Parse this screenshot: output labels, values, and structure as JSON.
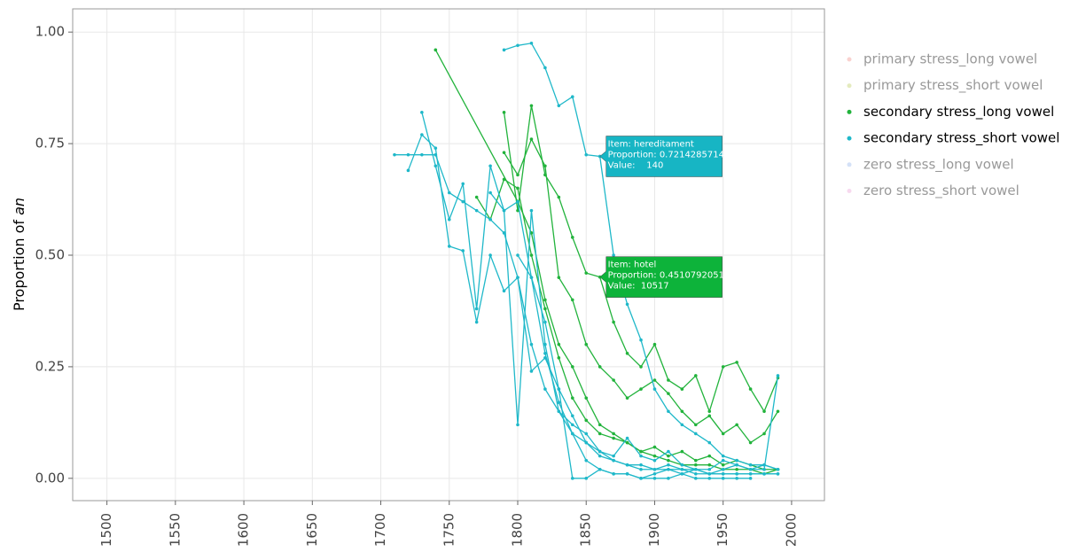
{
  "chart_data": {
    "type": "line",
    "y_label": "Proportion of",
    "y_label_emphasis": "an",
    "xlim": [
      1475,
      2024
    ],
    "xticks": [
      1500,
      1550,
      1600,
      1650,
      1700,
      1750,
      1800,
      1850,
      1900,
      1950,
      2000
    ],
    "ylim": [
      -0.05,
      1.052
    ],
    "yticks": [
      {
        "value": 0,
        "label": "0.00"
      },
      {
        "value": 0.25,
        "label": "0.25"
      },
      {
        "value": 0.5,
        "label": "0.50"
      },
      {
        "value": 0.75,
        "label": "0.75"
      },
      {
        "value": 1,
        "label": "1.00"
      }
    ],
    "grid": true,
    "legend_position": "right",
    "groups": [
      {
        "name": "primary stress_long vowel",
        "color": "#f3a6a0",
        "visible": false,
        "series": []
      },
      {
        "name": "primary stress_short vowel",
        "color": "#c9d77d",
        "visible": false,
        "series": []
      },
      {
        "name": "secondary stress_long vowel",
        "color": "#22b33c",
        "visible": true,
        "series": [
          {
            "x": [
              1740,
              1800,
              1810,
              1820,
              1830,
              1840,
              1850,
              1860,
              1870,
              1880,
              1890,
              1900,
              1910,
              1920,
              1930,
              1940,
              1950,
              1960,
              1970,
              1980,
              1990
            ],
            "values": [
              0.96,
              0.62,
              0.55,
              0.4,
              0.3,
              0.25,
              0.18,
              0.12,
              0.1,
              0.08,
              0.06,
              0.05,
              0.04,
              0.03,
              0.03,
              0.03,
              0.02,
              0.02,
              0.02,
              0.01,
              0.02
            ]
          },
          {
            "x": [
              1790,
              1800,
              1810,
              1820,
              1830,
              1840,
              1850,
              1860,
              1870,
              1880,
              1890,
              1900,
              1910,
              1920,
              1930,
              1940,
              1950,
              1960,
              1970,
              1980,
              1990
            ],
            "values": [
              0.82,
              0.6,
              0.835,
              0.68,
              0.63,
              0.54,
              0.46,
              0.4510792051,
              0.35,
              0.28,
              0.25,
              0.3,
              0.22,
              0.2,
              0.23,
              0.15,
              0.25,
              0.26,
              0.2,
              0.15,
              0.225
            ]
          },
          {
            "x": [
              1790,
              1800,
              1810,
              1820,
              1830,
              1840,
              1850,
              1860,
              1870,
              1880,
              1890,
              1900,
              1910,
              1920,
              1930,
              1940,
              1950,
              1960,
              1970,
              1980,
              1990
            ],
            "values": [
              0.73,
              0.68,
              0.76,
              0.7,
              0.45,
              0.4,
              0.3,
              0.25,
              0.22,
              0.18,
              0.2,
              0.22,
              0.19,
              0.15,
              0.12,
              0.14,
              0.1,
              0.12,
              0.08,
              0.1,
              0.15
            ]
          },
          {
            "x": [
              1770,
              1780,
              1790,
              1800,
              1810,
              1820,
              1830,
              1840,
              1850,
              1860,
              1870,
              1880,
              1890,
              1900,
              1910,
              1920,
              1930,
              1940,
              1950,
              1960,
              1970,
              1980,
              1990
            ],
            "values": [
              0.63,
              0.58,
              0.67,
              0.65,
              0.5,
              0.38,
              0.27,
              0.18,
              0.13,
              0.1,
              0.09,
              0.08,
              0.06,
              0.07,
              0.05,
              0.06,
              0.04,
              0.05,
              0.03,
              0.04,
              0.03,
              0.02,
              0.02
            ]
          }
        ]
      },
      {
        "name": "secondary stress_short vowel",
        "color": "#1fb8c9",
        "visible": true,
        "series": [
          {
            "x": [
              1710,
              1720,
              1730,
              1740,
              1750,
              1760,
              1770,
              1780,
              1790,
              1800,
              1810,
              1820,
              1830,
              1840,
              1850,
              1860,
              1870,
              1880,
              1890,
              1900,
              1910,
              1920,
              1930,
              1940,
              1950,
              1960,
              1970,
              1980,
              1990
            ],
            "values": [
              0.725,
              0.725,
              0.725,
              0.725,
              0.64,
              0.62,
              0.6,
              0.58,
              0.55,
              0.45,
              0.3,
              0.2,
              0.15,
              0.1,
              0.08,
              0.05,
              0.04,
              0.03,
              0.03,
              0.02,
              0.02,
              0.02,
              0.01,
              0.01,
              0.01,
              0.01,
              0.01,
              0.01,
              0.01
            ]
          },
          {
            "x": [
              1720,
              1730,
              1740,
              1750,
              1760,
              1770,
              1780,
              1790,
              1800,
              1810,
              1820,
              1830,
              1840,
              1850,
              1860,
              1870,
              1880,
              1890,
              1900,
              1910,
              1920,
              1930,
              1940,
              1950,
              1960,
              1970,
              1980,
              1990
            ],
            "values": [
              0.69,
              0.77,
              0.74,
              0.52,
              0.51,
              0.35,
              0.5,
              0.42,
              0.45,
              0.24,
              0.27,
              0.2,
              0.14,
              0.08,
              0.06,
              0.04,
              0.03,
              0.02,
              0.02,
              0.03,
              0.02,
              0.02,
              0.01,
              0.01,
              0.01,
              0.01,
              0.01,
              0.01
            ]
          },
          {
            "x": [
              1730,
              1740,
              1750,
              1760,
              1770,
              1780,
              1790,
              1800,
              1810,
              1820,
              1830,
              1840,
              1850,
              1860,
              1870,
              1880,
              1890,
              1900,
              1910,
              1920,
              1930,
              1940,
              1950,
              1960,
              1970,
              1980,
              1990
            ],
            "values": [
              0.82,
              0.7,
              0.58,
              0.66,
              0.38,
              0.7,
              0.6,
              0.12,
              0.6,
              0.3,
              0.15,
              0.12,
              0.1,
              0.06,
              0.05,
              0.09,
              0.05,
              0.04,
              0.06,
              0.03,
              0.02,
              0.02,
              0.04,
              0.03,
              0.02,
              0.03,
              0.02
            ]
          },
          {
            "x": [
              1790,
              1800,
              1810,
              1820,
              1830,
              1840,
              1850,
              1860,
              1870,
              1880,
              1890,
              1900,
              1910,
              1920,
              1930,
              1940,
              1950,
              1960,
              1970,
              1980,
              1990
            ],
            "values": [
              0.96,
              0.97,
              0.975,
              0.92,
              0.835,
              0.855,
              0.725,
              0.7214285714,
              0.5,
              0.39,
              0.31,
              0.2,
              0.15,
              0.12,
              0.1,
              0.08,
              0.05,
              0.04,
              0.03,
              0.03,
              0.02
            ]
          },
          {
            "x": [
              1780,
              1790,
              1800,
              1810,
              1820,
              1830,
              1840,
              1850,
              1860,
              1870,
              1880,
              1890,
              1900,
              1910,
              1920,
              1930,
              1940,
              1950,
              1960,
              1970
            ],
            "values": [
              0.64,
              0.6,
              0.62,
              0.45,
              0.28,
              0.17,
              0.1,
              0.04,
              0.02,
              0.01,
              0.01,
              0.0,
              0.0,
              0.0,
              0.01,
              0.0,
              0.0,
              0.0,
              0.0,
              0.0
            ]
          },
          {
            "x": [
              1800,
              1810,
              1820,
              1830,
              1840,
              1850,
              1860,
              1870,
              1880,
              1890,
              1900,
              1910,
              1920,
              1930,
              1940,
              1950,
              1960,
              1970,
              1980,
              1990
            ],
            "values": [
              0.5,
              0.45,
              0.35,
              0.2,
              0.0,
              0.0,
              0.02,
              0.01,
              0.01,
              0.0,
              0.01,
              0.02,
              0.01,
              0.02,
              0.01,
              0.02,
              0.03,
              0.02,
              0.02,
              0.23
            ]
          }
        ]
      },
      {
        "name": "zero stress_long vowel",
        "color": "#a9c4f0",
        "visible": false,
        "series": []
      },
      {
        "name": "zero stress_short vowel",
        "color": "#f0b3e0",
        "visible": false,
        "series": []
      }
    ],
    "tooltips": [
      {
        "x": 1860,
        "y": 0.7214285714,
        "color": "#17b5c4",
        "lines": [
          "Item: hereditament",
          "Proportion: 0.7214285714",
          "Value:    140"
        ]
      },
      {
        "x": 1860,
        "y": 0.4510792051,
        "color": "#0db33a",
        "lines": [
          "Item: hotel",
          "Proportion: 0.4510792051",
          "Value:  10517"
        ]
      }
    ]
  }
}
